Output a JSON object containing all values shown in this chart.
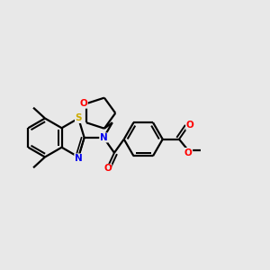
{
  "background_color": "#e8e8e8",
  "atom_colors": {
    "S": "#ccaa00",
    "N": "#0000ee",
    "O": "#ff0000",
    "C": "#000000"
  },
  "bond_color": "#000000",
  "figsize": [
    3.0,
    3.0
  ],
  "dpi": 100
}
